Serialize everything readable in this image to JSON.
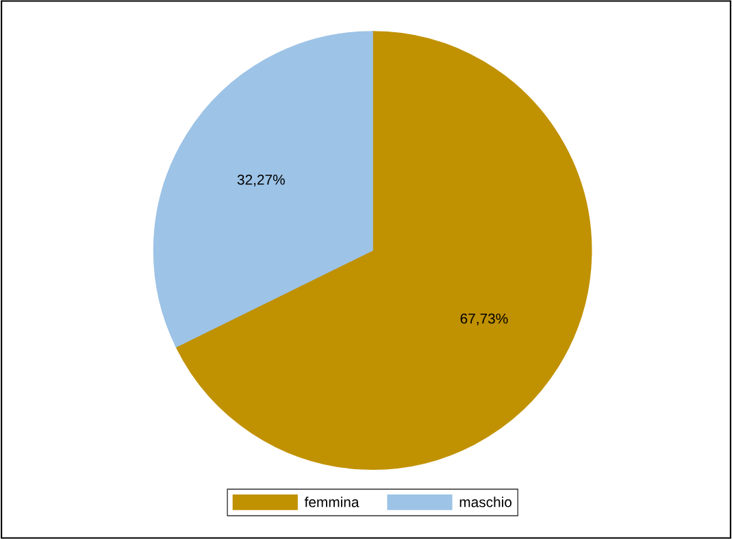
{
  "chart_data": {
    "type": "pie",
    "categories": [
      "femmina",
      "maschio"
    ],
    "values": [
      67.73,
      32.27
    ],
    "colors": [
      "#c09100",
      "#9dc3e6"
    ],
    "value_labels": [
      "67,73%",
      "32,27%"
    ],
    "legend": "bottom"
  }
}
